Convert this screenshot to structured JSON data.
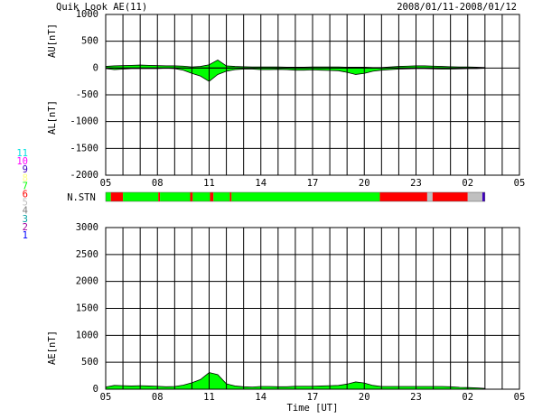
{
  "header": {
    "title": "Quik Look AE(11)",
    "date_range": "2008/01/11-2008/01/12"
  },
  "chart_data": [
    {
      "type": "area",
      "title": null,
      "y_labels": [
        "AU[nT]",
        "AL[nT]"
      ],
      "ylim": [
        -2000,
        1000
      ],
      "yticks": [
        -2000,
        -1500,
        -1000,
        -500,
        0,
        500,
        1000
      ],
      "xlim": [
        0,
        24
      ],
      "xticks": [
        {
          "value": 0,
          "label": "05"
        },
        {
          "value": 3,
          "label": "08"
        },
        {
          "value": 6,
          "label": "11"
        },
        {
          "value": 9,
          "label": "14"
        },
        {
          "value": 12,
          "label": "17"
        },
        {
          "value": 15,
          "label": "20"
        },
        {
          "value": 18,
          "label": "23"
        },
        {
          "value": 21,
          "label": "02"
        },
        {
          "value": 24,
          "label": "05"
        }
      ],
      "xminor_ticks": [
        0,
        1,
        2,
        3,
        4,
        5,
        6,
        7,
        8,
        9,
        10,
        11,
        12,
        13,
        14,
        15,
        16,
        17,
        18,
        19,
        20,
        21,
        22,
        23,
        24
      ],
      "x": [
        0,
        0.5,
        1,
        1.5,
        2,
        2.5,
        3,
        3.5,
        4,
        4.5,
        5,
        5.5,
        6,
        6.5,
        7,
        7.5,
        8,
        8.5,
        9,
        9.5,
        10,
        10.5,
        11,
        11.5,
        12,
        12.5,
        13,
        13.5,
        14,
        14.5,
        15,
        15.5,
        16,
        16.5,
        17,
        17.5,
        18,
        18.5,
        19,
        19.5,
        20,
        20.5,
        21,
        21.5,
        22
      ],
      "series": [
        {
          "name": "AU",
          "color": "#00ff00",
          "values": [
            30,
            40,
            45,
            50,
            55,
            50,
            45,
            40,
            40,
            35,
            20,
            30,
            60,
            150,
            40,
            30,
            25,
            20,
            20,
            20,
            20,
            15,
            15,
            15,
            20,
            20,
            20,
            20,
            15,
            15,
            15,
            10,
            10,
            20,
            30,
            35,
            40,
            40,
            35,
            30,
            25,
            20,
            20,
            15,
            10
          ]
        },
        {
          "name": "AL",
          "color": "#00ff00",
          "values": [
            -10,
            -30,
            -20,
            -10,
            -10,
            -10,
            -10,
            -5,
            -10,
            -40,
            -100,
            -150,
            -250,
            -120,
            -60,
            -30,
            -20,
            -20,
            -30,
            -30,
            -25,
            -30,
            -40,
            -40,
            -35,
            -40,
            -45,
            -50,
            -80,
            -120,
            -100,
            -60,
            -40,
            -30,
            -20,
            -15,
            -10,
            -10,
            -15,
            -20,
            -20,
            -15,
            -10,
            -10,
            -5
          ]
        }
      ]
    },
    {
      "type": "area",
      "title": null,
      "y_labels": [
        "AE[nT]"
      ],
      "x_label": "Time [UT]",
      "ylim": [
        0,
        3000
      ],
      "yticks": [
        0,
        500,
        1000,
        1500,
        2000,
        2500,
        3000
      ],
      "xlim": [
        0,
        24
      ],
      "xticks": [
        {
          "value": 0,
          "label": "05"
        },
        {
          "value": 3,
          "label": "08"
        },
        {
          "value": 6,
          "label": "11"
        },
        {
          "value": 9,
          "label": "14"
        },
        {
          "value": 12,
          "label": "17"
        },
        {
          "value": 15,
          "label": "20"
        },
        {
          "value": 18,
          "label": "23"
        },
        {
          "value": 21,
          "label": "02"
        },
        {
          "value": 24,
          "label": "05"
        }
      ],
      "xminor_ticks": [
        0,
        1,
        2,
        3,
        4,
        5,
        6,
        7,
        8,
        9,
        10,
        11,
        12,
        13,
        14,
        15,
        16,
        17,
        18,
        19,
        20,
        21,
        22,
        23,
        24
      ],
      "x": [
        0,
        0.5,
        1,
        1.5,
        2,
        2.5,
        3,
        3.5,
        4,
        4.5,
        5,
        5.5,
        6,
        6.5,
        7,
        7.5,
        8,
        8.5,
        9,
        9.5,
        10,
        10.5,
        11,
        11.5,
        12,
        12.5,
        13,
        13.5,
        14,
        14.5,
        15,
        15.5,
        16,
        16.5,
        17,
        17.5,
        18,
        18.5,
        19,
        19.5,
        20,
        20.5,
        21,
        21.5,
        22
      ],
      "series": [
        {
          "name": "AE",
          "color": "#00ff00",
          "values": [
            40,
            70,
            65,
            60,
            65,
            60,
            55,
            45,
            50,
            75,
            120,
            180,
            310,
            270,
            100,
            60,
            45,
            40,
            50,
            50,
            45,
            45,
            55,
            55,
            55,
            60,
            65,
            70,
            95,
            135,
            115,
            70,
            50,
            50,
            50,
            50,
            50,
            50,
            50,
            50,
            45,
            35,
            30,
            25,
            15
          ]
        }
      ]
    }
  ],
  "stations": {
    "label": "N.STN",
    "legend": [
      {
        "count": 11,
        "color": "#00e0e0"
      },
      {
        "count": 10,
        "color": "#ff00ff"
      },
      {
        "count": 9,
        "color": "#4000c0"
      },
      {
        "count": 8,
        "color": "#ffff80"
      },
      {
        "count": 7,
        "color": "#00ff00"
      },
      {
        "count": 6,
        "color": "#ff0000"
      },
      {
        "count": 5,
        "color": "#c0c0c0"
      },
      {
        "count": 4,
        "color": "#808080"
      },
      {
        "count": 3,
        "color": "#00a0a0"
      },
      {
        "count": 2,
        "color": "#a000a0"
      },
      {
        "count": 1,
        "color": "#0000ff"
      }
    ],
    "segments": [
      {
        "start": 0,
        "end": 0.3,
        "count": 7
      },
      {
        "start": 0.3,
        "end": 1.0,
        "count": 6
      },
      {
        "start": 1.0,
        "end": 3.05,
        "count": 7
      },
      {
        "start": 3.05,
        "end": 3.15,
        "count": 6
      },
      {
        "start": 3.15,
        "end": 4.9,
        "count": 7
      },
      {
        "start": 4.9,
        "end": 5.05,
        "count": 6
      },
      {
        "start": 5.05,
        "end": 6.05,
        "count": 7
      },
      {
        "start": 6.05,
        "end": 6.25,
        "count": 6
      },
      {
        "start": 6.25,
        "end": 7.2,
        "count": 7
      },
      {
        "start": 7.2,
        "end": 7.3,
        "count": 6
      },
      {
        "start": 7.3,
        "end": 15.9,
        "count": 7
      },
      {
        "start": 15.9,
        "end": 18.65,
        "count": 6
      },
      {
        "start": 18.65,
        "end": 18.96,
        "count": 5
      },
      {
        "start": 18.96,
        "end": 21.0,
        "count": 6
      },
      {
        "start": 21.0,
        "end": 21.85,
        "count": 5
      },
      {
        "start": 21.85,
        "end": 22.0,
        "count": 9
      }
    ]
  }
}
